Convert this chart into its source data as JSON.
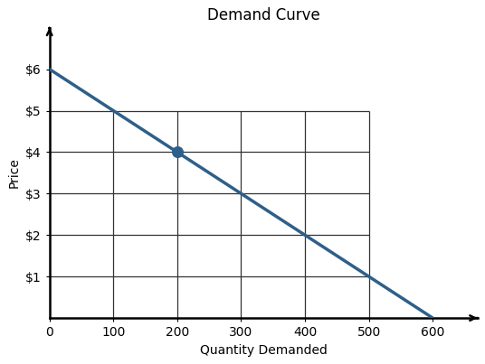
{
  "title": "Demand Curve",
  "xlabel": "Quantity Demanded",
  "ylabel": "Price",
  "line_x": [
    0,
    600
  ],
  "line_y": [
    6,
    0
  ],
  "line_color": "#2E5F8A",
  "line_width": 2.5,
  "highlight_point": [
    200,
    4
  ],
  "highlight_color": "#2E5F8A",
  "highlight_size": 70,
  "xlim": [
    0,
    670
  ],
  "ylim": [
    0,
    7.0
  ],
  "xticks": [
    0,
    100,
    200,
    300,
    400,
    500,
    600
  ],
  "yticks": [
    1,
    2,
    3,
    4,
    5,
    6
  ],
  "ytick_labels": [
    "$1",
    "$2",
    "$3",
    "$4",
    "$5",
    "$6"
  ],
  "grid_color": "#333333",
  "grid_linewidth": 0.9,
  "grid_x_vals": [
    100,
    200,
    300,
    400,
    500
  ],
  "grid_x_ymin": 0,
  "grid_x_ymax": 5,
  "grid_y_vals": [
    1,
    2,
    3,
    4,
    5
  ],
  "grid_y_xmin": 0,
  "grid_y_xmax": 500,
  "title_fontsize": 12,
  "axis_label_fontsize": 10,
  "tick_fontsize": 9,
  "bg_color": "#ffffff",
  "arrow_color": "#000000",
  "spine_lw": 1.8
}
